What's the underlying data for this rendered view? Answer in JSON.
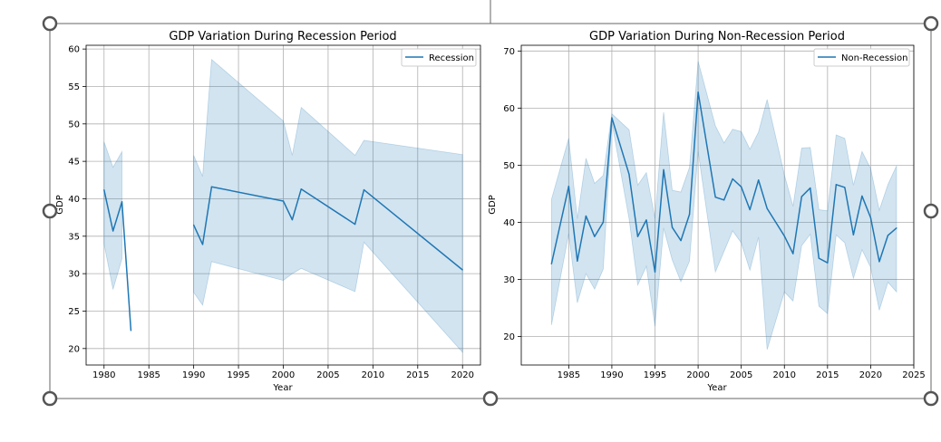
{
  "colors": {
    "line": "#1f77b4",
    "band": "#1f77b4",
    "grid": "#b0b0b0",
    "axis": "#000000",
    "selection": "#555555"
  },
  "chart_data": [
    {
      "type": "line",
      "title": "GDP Variation During Recession Period",
      "xlabel": "Year",
      "ylabel": "GDP",
      "xlim": [
        1978,
        2022
      ],
      "ylim": [
        17.8,
        60.5
      ],
      "xticks": [
        1980,
        1985,
        1990,
        1995,
        2000,
        2005,
        2010,
        2015,
        2020
      ],
      "yticks": [
        20,
        25,
        30,
        35,
        40,
        45,
        50,
        55,
        60
      ],
      "grid": true,
      "legend_position": "top-right",
      "series": [
        {
          "name": "Recession",
          "segments": [
            [
              {
                "x": 1980,
                "y": 41.2,
                "lo": 34.0,
                "hi": 47.6
              },
              {
                "x": 1981,
                "y": 35.7,
                "lo": 27.9,
                "hi": 44.2
              },
              {
                "x": 1982,
                "y": 39.6,
                "lo": 32.0,
                "hi": 46.3
              },
              {
                "x": 1983,
                "y": 22.4
              }
            ],
            [
              {
                "x": 1990,
                "y": 36.5,
                "lo": 27.5,
                "hi": 45.8
              },
              {
                "x": 1991,
                "y": 33.9,
                "lo": 25.8,
                "hi": 43.0
              },
              {
                "x": 1992,
                "y": 41.6,
                "lo": 31.6,
                "hi": 58.6
              },
              {
                "x": 2000,
                "y": 39.7,
                "lo": 29.1,
                "hi": 50.4
              },
              {
                "x": 2001,
                "y": 37.2,
                "lo": 30.0,
                "hi": 45.8
              },
              {
                "x": 2002,
                "y": 41.3,
                "lo": 30.7,
                "hi": 52.2
              },
              {
                "x": 2008,
                "y": 36.6,
                "lo": 27.6,
                "hi": 45.8
              },
              {
                "x": 2009,
                "y": 41.2,
                "lo": 34.2,
                "hi": 47.8
              },
              {
                "x": 2020,
                "y": 30.5,
                "lo": 19.5,
                "hi": 45.9
              }
            ]
          ]
        }
      ]
    },
    {
      "type": "line",
      "title": "GDP Variation During Non-Recession Period",
      "xlabel": "Year",
      "ylabel": "GDP",
      "xlim": [
        1979.5,
        2025
      ],
      "ylim": [
        15,
        71
      ],
      "xticks": [
        1985,
        1990,
        1995,
        2000,
        2005,
        2010,
        2015,
        2020,
        2025
      ],
      "yticks": [
        20,
        30,
        40,
        50,
        60,
        70
      ],
      "grid": true,
      "legend_position": "top-right",
      "series": [
        {
          "name": "Non-Recession",
          "segments": [
            [
              {
                "x": 1983,
                "y": 32.7,
                "lo": 22.0,
                "hi": 44.0
              },
              {
                "x": 1985,
                "y": 46.3,
                "lo": 38.0,
                "hi": 54.7
              },
              {
                "x": 1986,
                "y": 33.2,
                "lo": 25.9,
                "hi": 40.6
              },
              {
                "x": 1987,
                "y": 41.1,
                "lo": 31.0,
                "hi": 51.2
              },
              {
                "x": 1988,
                "y": 37.5,
                "lo": 28.3,
                "hi": 46.8
              },
              {
                "x": 1989,
                "y": 40.0,
                "lo": 31.8,
                "hi": 48.2
              },
              {
                "x": 1990,
                "y": 58.3,
                "lo": 57.5,
                "hi": 59.0
              },
              {
                "x": 1992,
                "y": 48.4,
                "lo": 40.6,
                "hi": 56.2
              },
              {
                "x": 1993,
                "y": 37.5,
                "lo": 29.0,
                "hi": 46.5
              },
              {
                "x": 1994,
                "y": 40.4,
                "lo": 32.3,
                "hi": 48.7
              },
              {
                "x": 1995,
                "y": 31.3,
                "lo": 21.8,
                "hi": 40.7
              },
              {
                "x": 1996,
                "y": 49.2,
                "lo": 39.0,
                "hi": 59.3
              },
              {
                "x": 1997,
                "y": 39.1,
                "lo": 33.4,
                "hi": 45.6
              },
              {
                "x": 1998,
                "y": 36.8,
                "lo": 29.6,
                "hi": 45.3
              },
              {
                "x": 1999,
                "y": 41.4,
                "lo": 33.2,
                "hi": 49.6
              },
              {
                "x": 2000,
                "y": 62.8,
                "lo": 52.4,
                "hi": 68.2
              },
              {
                "x": 2002,
                "y": 44.4,
                "lo": 31.3,
                "hi": 56.9
              },
              {
                "x": 2003,
                "y": 43.9,
                "lo": 34.9,
                "hi": 53.9
              },
              {
                "x": 2004,
                "y": 47.6,
                "lo": 38.5,
                "hi": 56.3
              },
              {
                "x": 2005,
                "y": 46.2,
                "lo": 36.4,
                "hi": 55.9
              },
              {
                "x": 2006,
                "y": 42.2,
                "lo": 31.6,
                "hi": 52.8
              },
              {
                "x": 2007,
                "y": 47.4,
                "lo": 37.4,
                "hi": 55.8
              },
              {
                "x": 2008,
                "y": 42.4,
                "lo": 17.7,
                "hi": 61.5
              },
              {
                "x": 2010,
                "y": 37.6,
                "lo": 27.8,
                "hi": 48.3
              },
              {
                "x": 2011,
                "y": 34.5,
                "lo": 26.2,
                "hi": 42.8
              },
              {
                "x": 2012,
                "y": 44.5,
                "lo": 35.9,
                "hi": 53.0
              },
              {
                "x": 2013,
                "y": 46.0,
                "lo": 37.9,
                "hi": 53.1
              },
              {
                "x": 2014,
                "y": 33.7,
                "lo": 25.3,
                "hi": 42.2
              },
              {
                "x": 2015,
                "y": 32.9,
                "lo": 24.0,
                "hi": 42.0
              },
              {
                "x": 2016,
                "y": 46.6,
                "lo": 37.8,
                "hi": 55.3
              },
              {
                "x": 2017,
                "y": 46.1,
                "lo": 36.4,
                "hi": 54.7
              },
              {
                "x": 2018,
                "y": 37.8,
                "lo": 30.2,
                "hi": 46.5
              },
              {
                "x": 2019,
                "y": 44.6,
                "lo": 35.2,
                "hi": 52.4
              },
              {
                "x": 2020,
                "y": 40.8,
                "lo": 32.1,
                "hi": 49.4
              },
              {
                "x": 2021,
                "y": 33.1,
                "lo": 24.6,
                "hi": 42.1
              },
              {
                "x": 2022,
                "y": 37.7,
                "lo": 29.5,
                "hi": 46.6
              },
              {
                "x": 2023,
                "y": 39.0,
                "lo": 27.8,
                "hi": 49.9
              }
            ]
          ]
        }
      ]
    }
  ]
}
